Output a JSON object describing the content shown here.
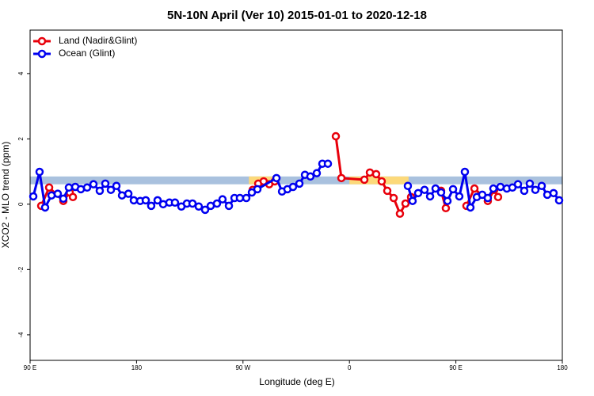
{
  "chart_data": {
    "type": "line",
    "title": "5N-10N April (Ver 10)   2015-01-01 to 2020-12-18",
    "xlabel": "Longitude (deg E)",
    "ylabel": "XCO2 - MLO trend (ppm)",
    "xlim": [
      90,
      540
    ],
    "ylim": [
      -4.78,
      5.33
    ],
    "xticks": [
      {
        "value": 90,
        "label": "90 E"
      },
      180,
      {
        "value": 270,
        "label": "90 W"
      },
      {
        "value": 360,
        "label": "0"
      },
      {
        "value": 450,
        "label": "90 E"
      },
      {
        "value": 540,
        "label": "180"
      }
    ],
    "yticks": [
      -4,
      -2,
      0,
      2,
      4
    ],
    "reference_band": [
      0.61,
      0.85
    ],
    "reference_band_color": "#a9c1de",
    "land_band_lon": [
      [
        275,
        299
      ],
      [
        360,
        410
      ]
    ],
    "land_band_color": "#fcd97a",
    "legend": "top-left",
    "series": [
      {
        "name": "Land (Nadir&Glint)",
        "color": "#e8000b",
        "x": [
          99.4,
          106.1,
          118.1,
          123.5,
          126.2,
          null,
          278.2,
          282.9,
          287.5,
          292.2,
          296.9,
          null,
          348.5,
          353.2,
          372.6,
          377.3,
          382.6,
          387.3,
          392.0,
          397.4,
          402.7,
          407.4,
          412.1,
          null,
          437.5,
          441.5,
          null,
          458.9,
          465.7,
          477.0,
          482.4,
          485.7
        ],
        "values": [
          -0.05,
          0.51,
          0.1,
          0.36,
          0.22,
          null,
          0.44,
          0.63,
          0.7,
          0.61,
          0.7,
          null,
          2.08,
          0.8,
          0.75,
          0.97,
          0.92,
          0.7,
          0.41,
          0.19,
          -0.29,
          0.02,
          0.22,
          null,
          0.41,
          -0.12,
          null,
          -0.05,
          0.48,
          0.1,
          0.44,
          0.22
        ]
      },
      {
        "name": "Ocean (Glint)",
        "color": "#0000f0",
        "x": [
          92.7,
          98.0,
          102.7,
          108.1,
          113.4,
          118.1,
          122.8,
          128.2,
          132.9,
          138.2,
          143.6,
          148.9,
          153.6,
          158.3,
          163.0,
          167.7,
          173.1,
          177.7,
          183.1,
          187.8,
          192.4,
          197.8,
          202.5,
          207.8,
          212.5,
          217.9,
          222.6,
          227.3,
          232.6,
          238.0,
          242.7,
          248.0,
          252.7,
          258.1,
          262.8,
          267.4,
          272.8,
          277.5,
          282.2,
          298.3,
          303.0,
          307.6,
          312.3,
          317.7,
          322.4,
          327.0,
          332.4,
          337.1,
          341.8,
          null,
          409.4,
          413.4,
          418.1,
          423.5,
          428.2,
          432.8,
          437.5,
          442.9,
          447.6,
          452.9,
          457.6,
          462.3,
          467.7,
          472.3,
          477.0,
          481.7,
          487.7,
          493.1,
          497.8,
          502.5,
          507.8,
          512.5,
          517.2,
          522.6,
          527.3,
          532.6,
          537.3
        ],
        "values": [
          0.24,
          0.99,
          -0.1,
          0.27,
          0.32,
          0.17,
          0.51,
          0.53,
          0.46,
          0.51,
          0.61,
          0.41,
          0.63,
          0.44,
          0.56,
          0.27,
          0.32,
          0.12,
          0.1,
          0.12,
          -0.05,
          0.12,
          0.0,
          0.05,
          0.05,
          -0.07,
          0.02,
          0.02,
          -0.07,
          -0.17,
          -0.05,
          0.02,
          0.15,
          -0.05,
          0.19,
          0.19,
          0.19,
          0.36,
          0.46,
          0.8,
          0.39,
          0.46,
          0.53,
          0.63,
          0.9,
          0.85,
          0.95,
          1.24,
          1.24,
          null,
          0.56,
          0.1,
          0.34,
          0.44,
          0.24,
          0.48,
          0.36,
          0.1,
          0.46,
          0.24,
          0.99,
          -0.1,
          0.22,
          0.29,
          0.19,
          0.48,
          0.53,
          0.48,
          0.51,
          0.61,
          0.41,
          0.63,
          0.44,
          0.56,
          0.29,
          0.34,
          0.12
        ]
      }
    ]
  }
}
